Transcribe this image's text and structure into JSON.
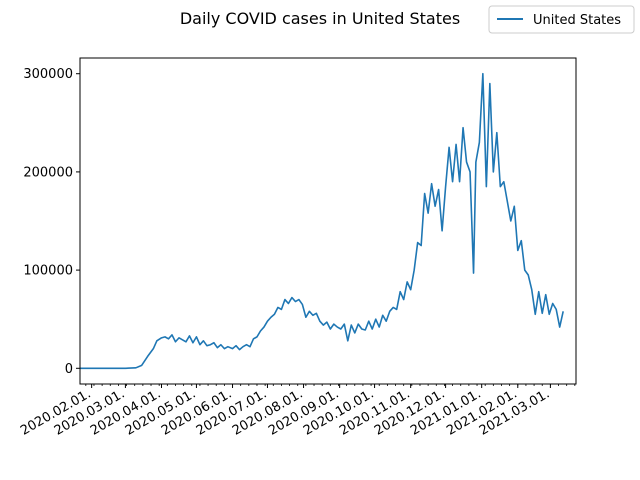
{
  "chart_data": {
    "type": "line",
    "title": "Daily COVID cases in United States",
    "xlabel": "",
    "ylabel": "",
    "legend": {
      "placement": "top-right",
      "entries": [
        "United States"
      ]
    },
    "grid": false,
    "xlim": [
      "2020-01-22",
      "2021-03-23"
    ],
    "ylim": [
      -16000,
      316000
    ],
    "y_ticks": [
      0,
      100000,
      200000,
      300000
    ],
    "x_ticks": [
      "2020.02.01.",
      "2020.03.01.",
      "2020.04.01.",
      "2020.05.01.",
      "2020.06.01.",
      "2020.07.01.",
      "2020.08.01.",
      "2020.09.01.",
      "2020.10.01.",
      "2020.11.01.",
      "2020.12.01.",
      "2021.01.01.",
      "2021.02.01.",
      "2021.03.01."
    ],
    "x_tick_dates": [
      "2020-02-01",
      "2020-03-01",
      "2020-04-01",
      "2020-05-01",
      "2020-06-01",
      "2020-07-01",
      "2020-08-01",
      "2020-09-01",
      "2020-10-01",
      "2020-11-01",
      "2020-12-01",
      "2021-01-01",
      "2021-02-01",
      "2021-03-01"
    ],
    "series": [
      {
        "name": "United States",
        "color": "#1f77b4",
        "points": [
          [
            "2020-01-22",
            0
          ],
          [
            "2020-02-15",
            0
          ],
          [
            "2020-03-01",
            0
          ],
          [
            "2020-03-10",
            500
          ],
          [
            "2020-03-15",
            3000
          ],
          [
            "2020-03-20",
            12000
          ],
          [
            "2020-03-25",
            20000
          ],
          [
            "2020-03-28",
            28000
          ],
          [
            "2020-04-01",
            31000
          ],
          [
            "2020-04-04",
            32000
          ],
          [
            "2020-04-07",
            30000
          ],
          [
            "2020-04-10",
            34000
          ],
          [
            "2020-04-13",
            27000
          ],
          [
            "2020-04-16",
            31000
          ],
          [
            "2020-04-19",
            29000
          ],
          [
            "2020-04-22",
            27000
          ],
          [
            "2020-04-25",
            33000
          ],
          [
            "2020-04-28",
            26000
          ],
          [
            "2020-05-01",
            32000
          ],
          [
            "2020-05-04",
            24000
          ],
          [
            "2020-05-07",
            28000
          ],
          [
            "2020-05-10",
            23000
          ],
          [
            "2020-05-13",
            24000
          ],
          [
            "2020-05-16",
            26000
          ],
          [
            "2020-05-19",
            21000
          ],
          [
            "2020-05-22",
            24000
          ],
          [
            "2020-05-25",
            20000
          ],
          [
            "2020-05-28",
            22000
          ],
          [
            "2020-06-01",
            20000
          ],
          [
            "2020-06-04",
            23000
          ],
          [
            "2020-06-07",
            19000
          ],
          [
            "2020-06-10",
            22000
          ],
          [
            "2020-06-13",
            24000
          ],
          [
            "2020-06-16",
            22000
          ],
          [
            "2020-06-19",
            30000
          ],
          [
            "2020-06-22",
            32000
          ],
          [
            "2020-06-25",
            38000
          ],
          [
            "2020-06-28",
            42000
          ],
          [
            "2020-07-01",
            48000
          ],
          [
            "2020-07-04",
            52000
          ],
          [
            "2020-07-07",
            55000
          ],
          [
            "2020-07-10",
            62000
          ],
          [
            "2020-07-13",
            60000
          ],
          [
            "2020-07-16",
            70000
          ],
          [
            "2020-07-19",
            66000
          ],
          [
            "2020-07-22",
            72000
          ],
          [
            "2020-07-25",
            68000
          ],
          [
            "2020-07-28",
            70000
          ],
          [
            "2020-07-31",
            65000
          ],
          [
            "2020-08-03",
            52000
          ],
          [
            "2020-08-06",
            58000
          ],
          [
            "2020-08-09",
            54000
          ],
          [
            "2020-08-12",
            56000
          ],
          [
            "2020-08-15",
            48000
          ],
          [
            "2020-08-18",
            44000
          ],
          [
            "2020-08-21",
            47000
          ],
          [
            "2020-08-24",
            40000
          ],
          [
            "2020-08-27",
            45000
          ],
          [
            "2020-08-30",
            42000
          ],
          [
            "2020-09-02",
            40000
          ],
          [
            "2020-09-05",
            45000
          ],
          [
            "2020-09-08",
            28000
          ],
          [
            "2020-09-11",
            44000
          ],
          [
            "2020-09-14",
            36000
          ],
          [
            "2020-09-17",
            45000
          ],
          [
            "2020-09-20",
            40000
          ],
          [
            "2020-09-23",
            39000
          ],
          [
            "2020-09-26",
            48000
          ],
          [
            "2020-09-29",
            40000
          ],
          [
            "2020-10-02",
            50000
          ],
          [
            "2020-10-05",
            42000
          ],
          [
            "2020-10-08",
            54000
          ],
          [
            "2020-10-11",
            48000
          ],
          [
            "2020-10-14",
            58000
          ],
          [
            "2020-10-17",
            62000
          ],
          [
            "2020-10-20",
            60000
          ],
          [
            "2020-10-23",
            78000
          ],
          [
            "2020-10-26",
            70000
          ],
          [
            "2020-10-29",
            88000
          ],
          [
            "2020-11-01",
            80000
          ],
          [
            "2020-11-04",
            100000
          ],
          [
            "2020-11-07",
            128000
          ],
          [
            "2020-11-10",
            125000
          ],
          [
            "2020-11-13",
            178000
          ],
          [
            "2020-11-16",
            158000
          ],
          [
            "2020-11-19",
            188000
          ],
          [
            "2020-11-22",
            165000
          ],
          [
            "2020-11-25",
            182000
          ],
          [
            "2020-11-28",
            140000
          ],
          [
            "2020-12-01",
            185000
          ],
          [
            "2020-12-04",
            225000
          ],
          [
            "2020-12-07",
            190000
          ],
          [
            "2020-12-10",
            228000
          ],
          [
            "2020-12-13",
            190000
          ],
          [
            "2020-12-16",
            245000
          ],
          [
            "2020-12-19",
            210000
          ],
          [
            "2020-12-22",
            200000
          ],
          [
            "2020-12-25",
            97000
          ],
          [
            "2020-12-27",
            210000
          ],
          [
            "2020-12-30",
            230000
          ],
          [
            "2021-01-02",
            300000
          ],
          [
            "2021-01-05",
            185000
          ],
          [
            "2021-01-08",
            290000
          ],
          [
            "2021-01-11",
            200000
          ],
          [
            "2021-01-14",
            240000
          ],
          [
            "2021-01-17",
            185000
          ],
          [
            "2021-01-20",
            190000
          ],
          [
            "2021-01-23",
            170000
          ],
          [
            "2021-01-26",
            150000
          ],
          [
            "2021-01-29",
            165000
          ],
          [
            "2021-02-01",
            120000
          ],
          [
            "2021-02-04",
            130000
          ],
          [
            "2021-02-07",
            100000
          ],
          [
            "2021-02-10",
            95000
          ],
          [
            "2021-02-13",
            80000
          ],
          [
            "2021-02-16",
            55000
          ],
          [
            "2021-02-19",
            78000
          ],
          [
            "2021-02-22",
            56000
          ],
          [
            "2021-02-25",
            75000
          ],
          [
            "2021-02-28",
            55000
          ],
          [
            "2021-03-03",
            66000
          ],
          [
            "2021-03-06",
            60000
          ],
          [
            "2021-03-09",
            42000
          ],
          [
            "2021-03-12",
            58000
          ]
        ]
      }
    ]
  }
}
